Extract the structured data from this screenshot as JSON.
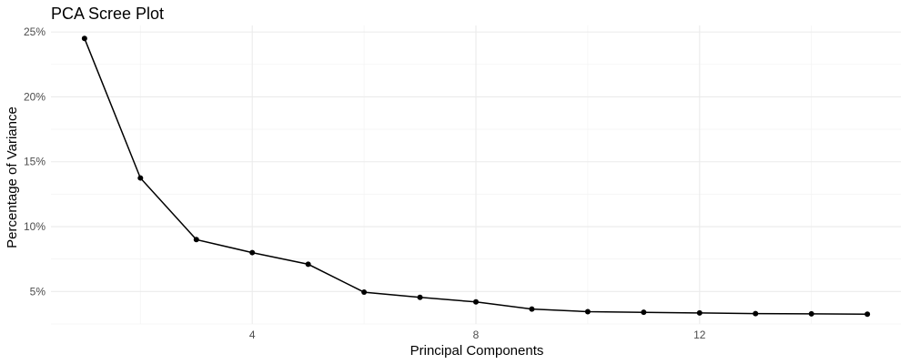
{
  "chart_data": {
    "type": "line",
    "title": "PCA Scree Plot",
    "xlabel": "Principal Components",
    "ylabel": "Percentage of Variance",
    "x": [
      1,
      2,
      3,
      4,
      5,
      6,
      7,
      8,
      9,
      10,
      11,
      12,
      13,
      14,
      15
    ],
    "series": [
      {
        "values": [
          24.5,
          13.75,
          9.0,
          8.0,
          7.1,
          4.95,
          4.55,
          4.2,
          3.65,
          3.45,
          3.4,
          3.35,
          3.3,
          3.28,
          3.25
        ],
        "color": "#000000"
      }
    ],
    "xlim": [
      0.4,
      15.6
    ],
    "ylim": [
      2.5,
      25.5
    ],
    "xticks": [
      4,
      8,
      12
    ],
    "xtick_labels": [
      "4",
      "8",
      "12"
    ],
    "yticks": [
      5,
      10,
      15,
      20,
      25
    ],
    "ytick_labels": [
      "5%",
      "10%",
      "15%",
      "20%",
      "25%"
    ],
    "grid": true,
    "legend": "none"
  }
}
